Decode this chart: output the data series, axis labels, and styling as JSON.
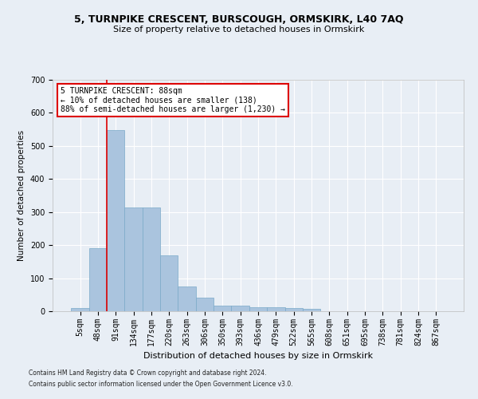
{
  "title1": "5, TURNPIKE CRESCENT, BURSCOUGH, ORMSKIRK, L40 7AQ",
  "title2": "Size of property relative to detached houses in Ormskirk",
  "xlabel": "Distribution of detached houses by size in Ormskirk",
  "ylabel": "Number of detached properties",
  "footer1": "Contains HM Land Registry data © Crown copyright and database right 2024.",
  "footer2": "Contains public sector information licensed under the Open Government Licence v3.0.",
  "categories": [
    "5sqm",
    "48sqm",
    "91sqm",
    "134sqm",
    "177sqm",
    "220sqm",
    "263sqm",
    "306sqm",
    "350sqm",
    "393sqm",
    "436sqm",
    "479sqm",
    "522sqm",
    "565sqm",
    "608sqm",
    "651sqm",
    "695sqm",
    "738sqm",
    "781sqm",
    "824sqm",
    "867sqm"
  ],
  "values": [
    10,
    190,
    548,
    315,
    315,
    170,
    75,
    40,
    18,
    18,
    12,
    12,
    10,
    8,
    0,
    0,
    0,
    0,
    0,
    0,
    0
  ],
  "bar_color": "#aac4de",
  "bar_edge_color": "#7aaac8",
  "highlight_color": "#dd0000",
  "annotation_title": "5 TURNPIKE CRESCENT: 88sqm",
  "annotation_line1": "← 10% of detached houses are smaller (138)",
  "annotation_line2": "88% of semi-detached houses are larger (1,230) →",
  "annotation_box_facecolor": "#ffffff",
  "annotation_box_edgecolor": "#dd0000",
  "ylim_min": 0,
  "ylim_max": 700,
  "yticks": [
    0,
    100,
    200,
    300,
    400,
    500,
    600,
    700
  ],
  "background_color": "#e8eef5",
  "grid_color": "#ffffff",
  "title1_fontsize": 9,
  "title2_fontsize": 8,
  "xlabel_fontsize": 8,
  "ylabel_fontsize": 7.5,
  "tick_fontsize": 7,
  "footer_fontsize": 5.5,
  "annotation_fontsize": 7,
  "vline_x": 1.5
}
